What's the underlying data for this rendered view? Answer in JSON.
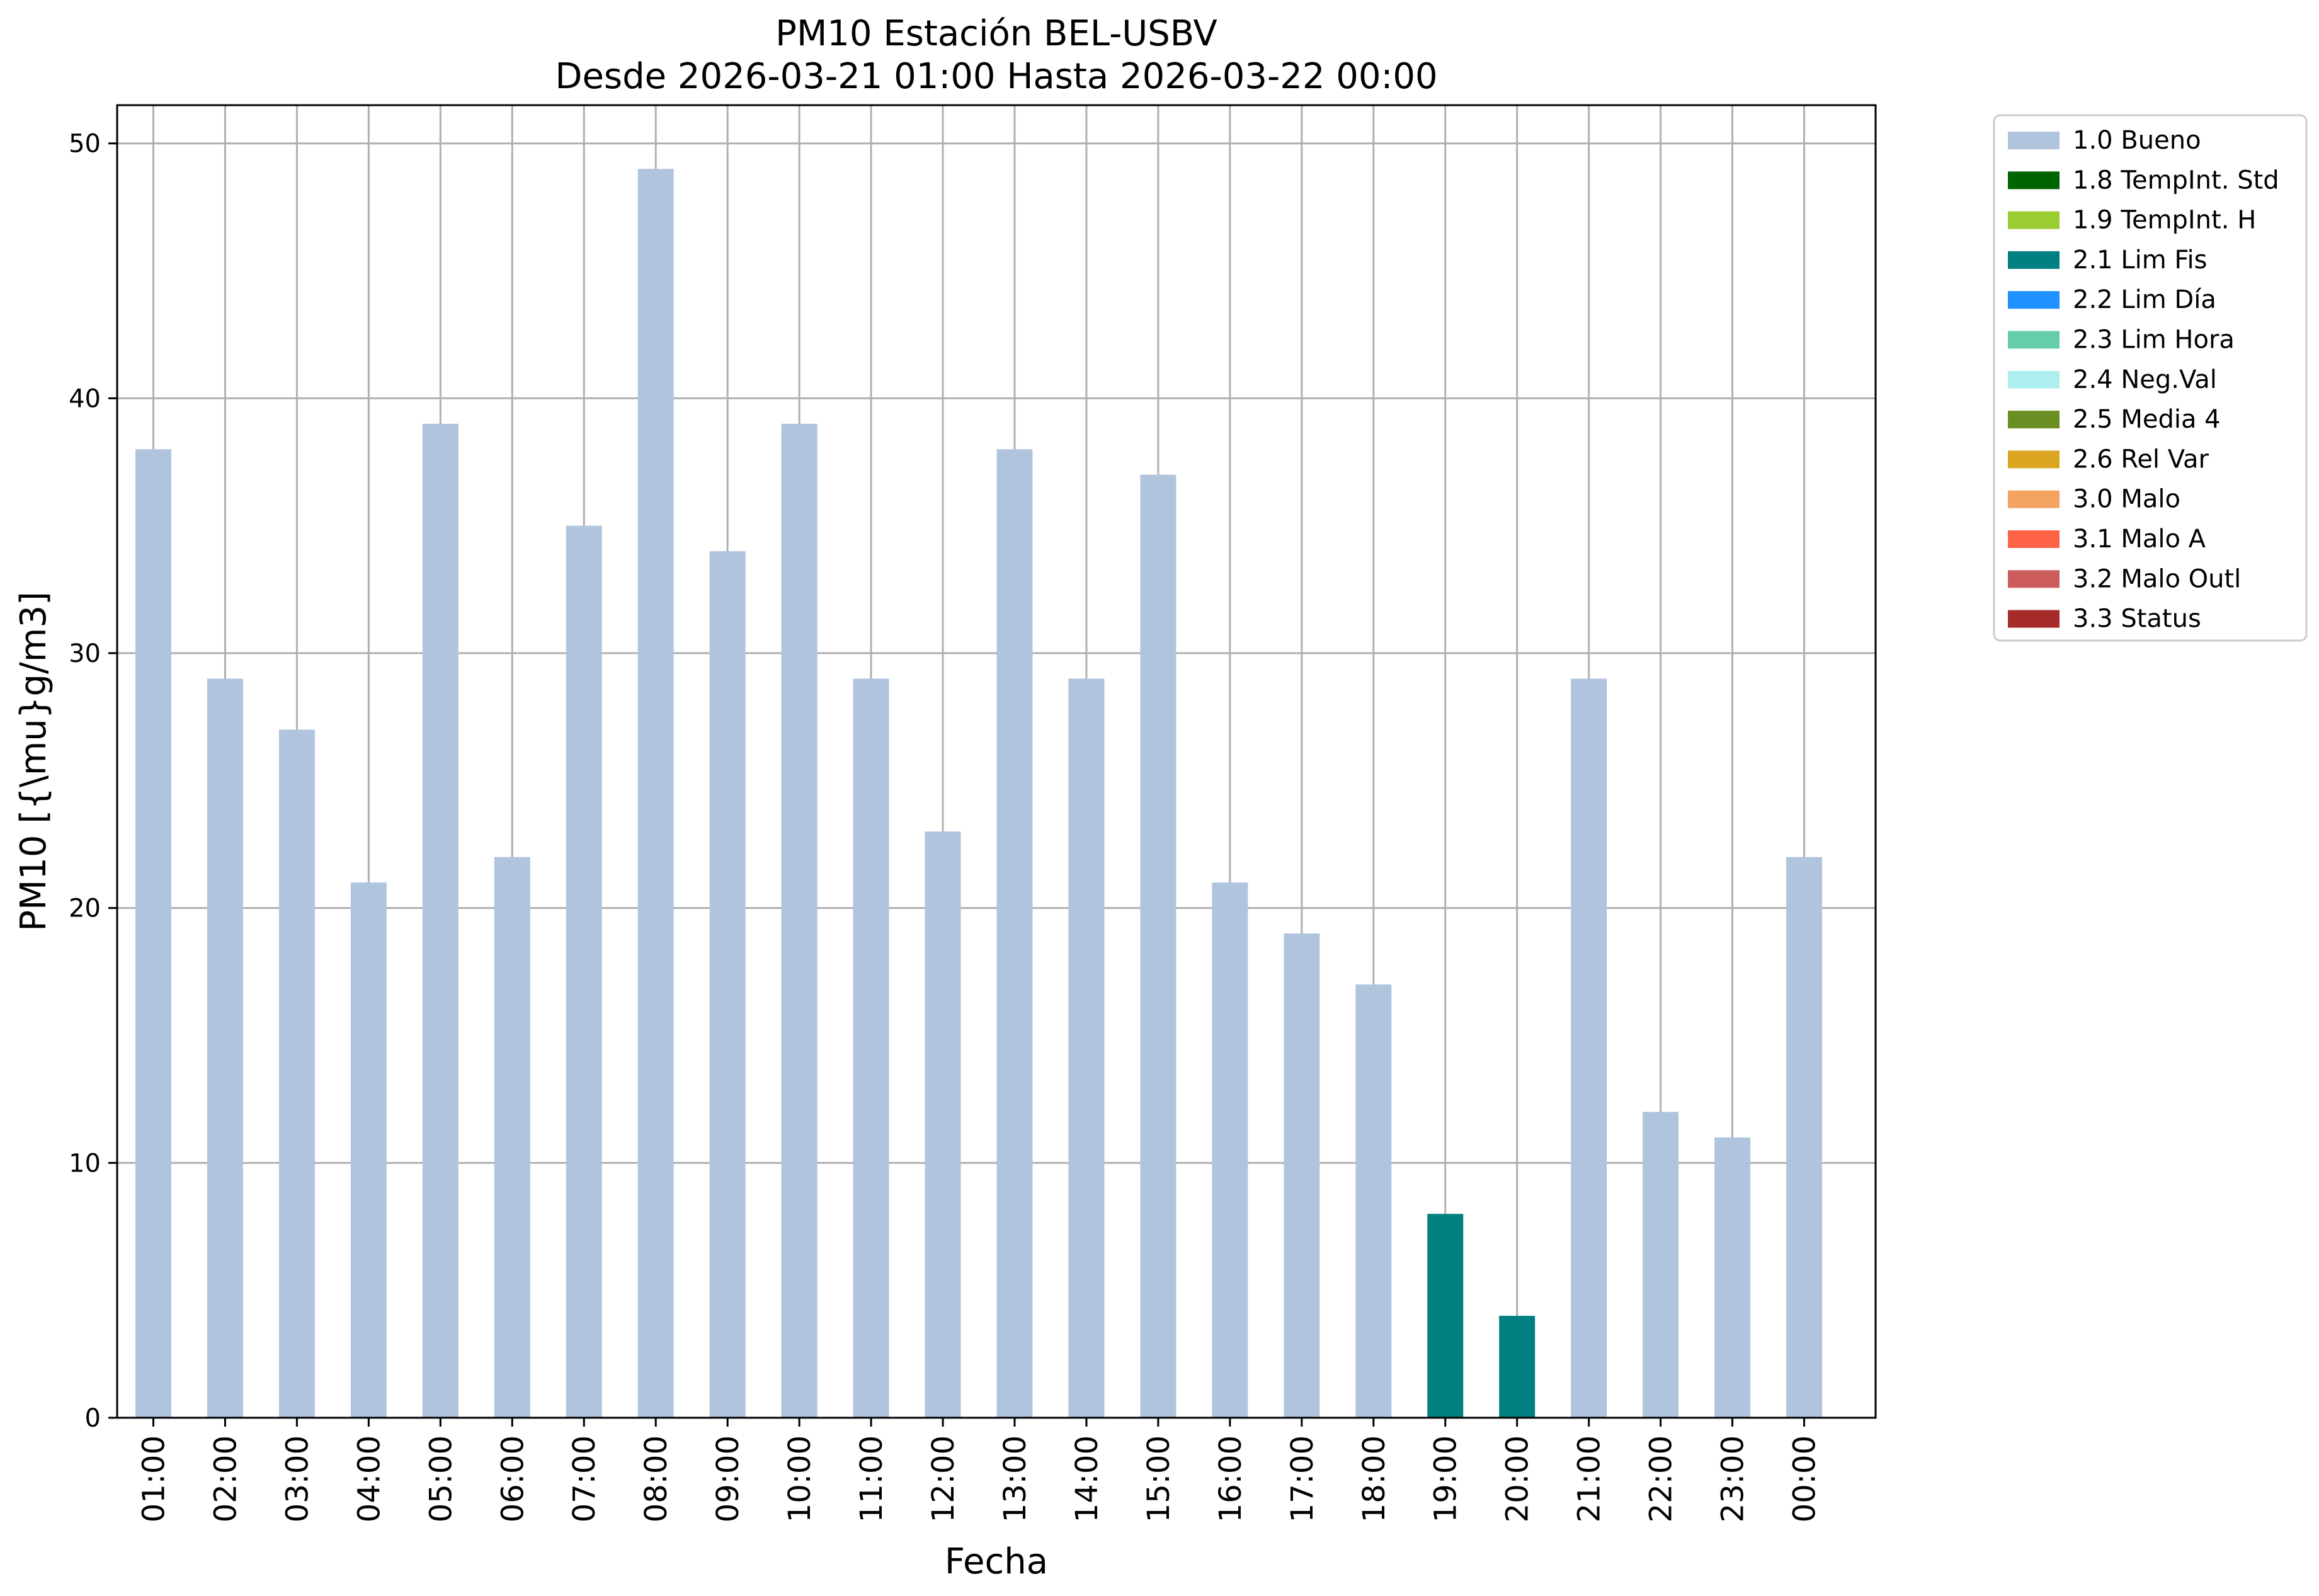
{
  "chart_data": {
    "type": "bar",
    "title": "PM10 Estación BEL-USBV",
    "subtitle": "Desde 2026-03-21 01:00 Hasta 2026-03-22 00:00",
    "xlabel": "Fecha",
    "ylabel": "PM10 [{\\mu}g/m3]",
    "ylim": [
      0,
      51.5
    ],
    "yticks": [
      0,
      10,
      20,
      30,
      40,
      50
    ],
    "grid": true,
    "legend_position": "outside-top-right",
    "categories": [
      "01:00",
      "02:00",
      "03:00",
      "04:00",
      "05:00",
      "06:00",
      "07:00",
      "08:00",
      "09:00",
      "10:00",
      "11:00",
      "12:00",
      "13:00",
      "14:00",
      "15:00",
      "16:00",
      "17:00",
      "18:00",
      "19:00",
      "20:00",
      "21:00",
      "22:00",
      "23:00",
      "00:00"
    ],
    "values": [
      38,
      29,
      27,
      21,
      39,
      22,
      35,
      49,
      34,
      39,
      29,
      23,
      38,
      29,
      37,
      21,
      19,
      17,
      8,
      4,
      29,
      12,
      11,
      22
    ],
    "flags": [
      "1.0 Bueno",
      "1.0 Bueno",
      "1.0 Bueno",
      "1.0 Bueno",
      "1.0 Bueno",
      "1.0 Bueno",
      "1.0 Bueno",
      "1.0 Bueno",
      "1.0 Bueno",
      "1.0 Bueno",
      "1.0 Bueno",
      "1.0 Bueno",
      "1.0 Bueno",
      "1.0 Bueno",
      "1.0 Bueno",
      "1.0 Bueno",
      "1.0 Bueno",
      "1.0 Bueno",
      "2.1 Lim Fis",
      "2.1 Lim Fis",
      "1.0 Bueno",
      "1.0 Bueno",
      "1.0 Bueno",
      "1.0 Bueno"
    ],
    "legend": [
      {
        "label": "1.0 Bueno",
        "color": "#b0c4de"
      },
      {
        "label": "1.8 TempInt. Std",
        "color": "#006400"
      },
      {
        "label": "1.9 TempInt. H",
        "color": "#9acd32"
      },
      {
        "label": "2.1 Lim Fis",
        "color": "#008080"
      },
      {
        "label": "2.2 Lim Día",
        "color": "#1e90ff"
      },
      {
        "label": "2.3 Lim Hora",
        "color": "#66cdaa"
      },
      {
        "label": "2.4 Neg.Val",
        "color": "#afeeee"
      },
      {
        "label": "2.5 Media 4",
        "color": "#6b8e23"
      },
      {
        "label": "2.6 Rel Var",
        "color": "#daa520"
      },
      {
        "label": "3.0 Malo",
        "color": "#f4a460"
      },
      {
        "label": "3.1 Malo A",
        "color": "#ff6347"
      },
      {
        "label": "3.2 Malo Outl",
        "color": "#cd5c5c"
      },
      {
        "label": "3.3 Status",
        "color": "#a52a2a"
      }
    ]
  }
}
